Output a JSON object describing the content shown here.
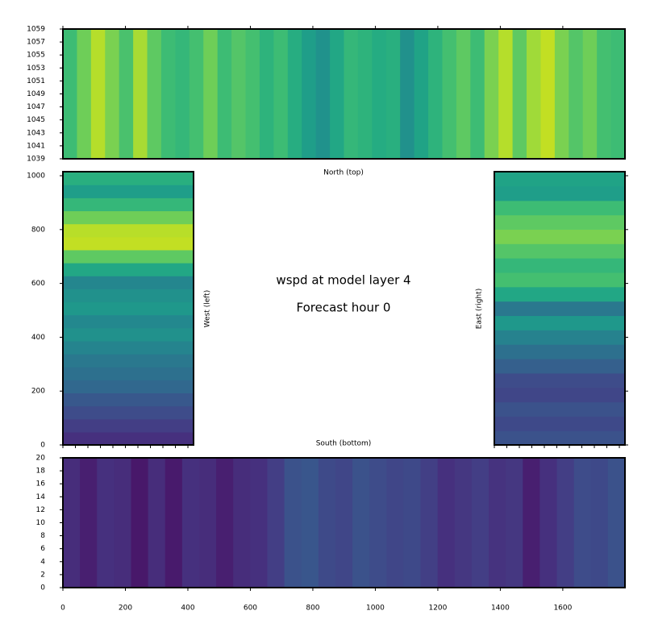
{
  "figure": {
    "title": "wspd at model layer 4",
    "subtitle": "Forecast hour 0"
  },
  "chart_data": [
    {
      "type": "heatmap",
      "label": "North (top)",
      "orientation": "vertical-stripes",
      "xlim": [
        0,
        1799
      ],
      "ylim": [
        1039,
        1059
      ],
      "xticks": [
        0,
        200,
        400,
        600,
        800,
        1000,
        1200,
        1400,
        1600
      ],
      "xtick_side": "top",
      "xtick_labels": false,
      "yticks": [
        1039,
        1041,
        1043,
        1045,
        1047,
        1049,
        1051,
        1053,
        1055,
        1057,
        1059
      ],
      "ytick_side": "left",
      "ytick_labels": true,
      "colors": [
        "#3dbc74",
        "#6ece58",
        "#b5de2b",
        "#7ad151",
        "#4ac16d",
        "#a8db34",
        "#5ec962",
        "#3dbc74",
        "#35b779",
        "#44bf70",
        "#6ece58",
        "#3dbc74",
        "#54c568",
        "#44bf70",
        "#2eb37c",
        "#3dbc74",
        "#27ad81",
        "#1f9e89",
        "#20928c",
        "#22a785",
        "#35b779",
        "#2eb37c",
        "#25ac82",
        "#29af7f",
        "#21918c",
        "#20a386",
        "#2eb37c",
        "#44bf70",
        "#5ec962",
        "#3dbc74",
        "#7ad151",
        "#b5de2b",
        "#5ec962",
        "#a0da39",
        "#c2df23",
        "#7ad151",
        "#54c568",
        "#6ece58",
        "#44bf70",
        "#3dbc74"
      ]
    },
    {
      "type": "heatmap",
      "label": "West (left)",
      "orientation": "horizontal-stripes",
      "xlim": [
        0,
        418
      ],
      "ylim": [
        0,
        1015
      ],
      "xticks": [
        0,
        40,
        80,
        120,
        160,
        200,
        240,
        280,
        320,
        360,
        400
      ],
      "xtick_side": "bottom",
      "xtick_labels": false,
      "yticks": [
        0,
        200,
        400,
        600,
        800,
        1000
      ],
      "ytick_side": "left",
      "ytick_labels": true,
      "colors": [
        "#46307e",
        "#433e85",
        "#3e4c8a",
        "#38588c",
        "#31688e",
        "#2d708e",
        "#2a788e",
        "#25848e",
        "#21918c",
        "#23888e",
        "#1f988b",
        "#21918c",
        "#24868e",
        "#22a785",
        "#5ec962",
        "#c2df23",
        "#b8de29",
        "#6ece58",
        "#35b779",
        "#1f9e89",
        "#29af7f"
      ]
    },
    {
      "type": "heatmap",
      "label": "East (right)",
      "orientation": "horizontal-stripes",
      "xlim": [
        0,
        418
      ],
      "ylim": [
        0,
        1015
      ],
      "xticks": [
        0,
        40,
        80,
        120,
        160,
        200,
        240,
        280,
        320,
        360,
        400
      ],
      "xtick_side": "bottom",
      "xtick_labels": false,
      "yticks": [
        0,
        200,
        400,
        600,
        800,
        1000
      ],
      "ytick_side": "right",
      "ytick_labels": false,
      "colors": [
        "#3b528b",
        "#3e4989",
        "#3b528b",
        "#404688",
        "#3e4c8a",
        "#35608d",
        "#2d708e",
        "#26828e",
        "#1f988b",
        "#2a788e",
        "#22a785",
        "#44bf70",
        "#35b779",
        "#54c568",
        "#7ad151",
        "#5ec962",
        "#3dbc74",
        "#1f9e89",
        "#20a386"
      ]
    },
    {
      "type": "heatmap",
      "label": "South (bottom)",
      "orientation": "vertical-stripes",
      "xlim": [
        0,
        1799
      ],
      "ylim": [
        0,
        20
      ],
      "xticks": [
        0,
        200,
        400,
        600,
        800,
        1000,
        1200,
        1400,
        1600
      ],
      "xtick_side": "bottom",
      "xtick_labels": true,
      "yticks": [
        0,
        2,
        4,
        6,
        8,
        10,
        12,
        14,
        16,
        18,
        20
      ],
      "ytick_side": "left",
      "ytick_labels": true,
      "colors": [
        "#472d7b",
        "#481f70",
        "#46307e",
        "#472d7b",
        "#48186a",
        "#472d7b",
        "#481a6c",
        "#46307e",
        "#472d7b",
        "#481f70",
        "#472d7b",
        "#46307e",
        "#433e85",
        "#3b528b",
        "#39568c",
        "#3e4a89",
        "#404688",
        "#3b528b",
        "#3e4c8a",
        "#404688",
        "#3e4989",
        "#423f85",
        "#46307e",
        "#453781",
        "#433e85",
        "#46337f",
        "#453781",
        "#481f70",
        "#46307e",
        "#433e85",
        "#3e4c8a",
        "#3e4989",
        "#3b528b"
      ]
    }
  ]
}
